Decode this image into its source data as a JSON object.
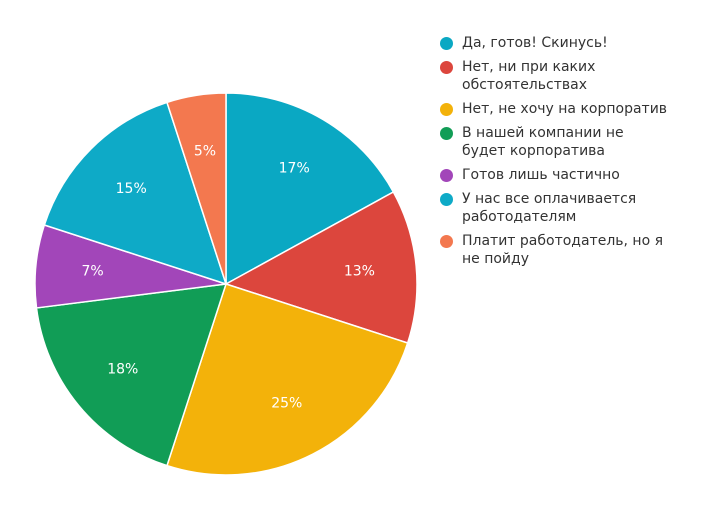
{
  "chart_data": {
    "type": "pie",
    "title": "",
    "slices": [
      {
        "label": "Да, готов! Скинусь!",
        "legend": "Да, готов! Скинусь!",
        "value": 17,
        "value_label": "17%",
        "color": "#0aa8c3"
      },
      {
        "label": "Нет, ни при каких обстоятельствах",
        "legend": "Нет, ни при каких\nобстоятельствах",
        "value": 13,
        "value_label": "13%",
        "color": "#dc463d"
      },
      {
        "label": "Нет, не хочу на корпоратив",
        "legend": "Нет, не хочу на корпоратив",
        "value": 25,
        "value_label": "25%",
        "color": "#f3b20a"
      },
      {
        "label": "В нашей компании не будет корпоратива",
        "legend": "В нашей компании не\nбудет корпоратива",
        "value": 18,
        "value_label": "18%",
        "color": "#119d56"
      },
      {
        "label": "Готов лишь частично",
        "legend": "Готов лишь частично",
        "value": 7,
        "value_label": "7%",
        "color": "#a246b9"
      },
      {
        "label": "У нас все оплачивается работодателям",
        "legend": "У нас все оплачивается\nработодателям",
        "value": 15,
        "value_label": "15%",
        "color": "#0eaac7"
      },
      {
        "label": "Платит работодатель, но я не пойду",
        "legend": "Платит работодатель, но я\nне пойду",
        "value": 5,
        "value_label": "5%",
        "color": "#f3784f"
      }
    ],
    "legend_position": "right",
    "start_angle": "top",
    "direction": "clockwise",
    "slice_border_color": "#ffffff",
    "label_color": "#ffffff"
  }
}
